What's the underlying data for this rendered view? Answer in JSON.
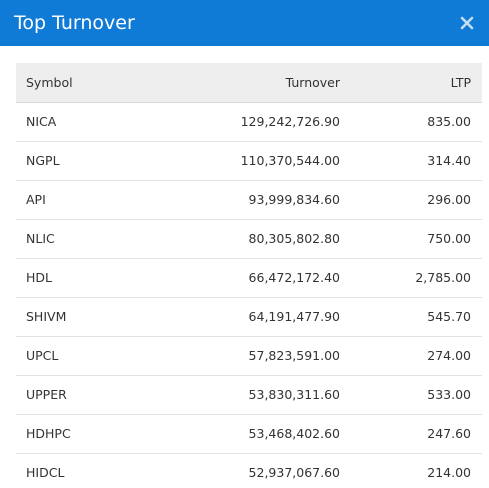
{
  "header": {
    "title": "Top Turnover",
    "close_icon": "close-icon"
  },
  "table": {
    "columns": [
      "Symbol",
      "Turnover",
      "LTP"
    ],
    "rows": [
      {
        "symbol": "NICA",
        "turnover": "129,242,726.90",
        "ltp": "835.00"
      },
      {
        "symbol": "NGPL",
        "turnover": "110,370,544.00",
        "ltp": "314.40"
      },
      {
        "symbol": "API",
        "turnover": "93,999,834.60",
        "ltp": "296.00"
      },
      {
        "symbol": "NLIC",
        "turnover": "80,305,802.80",
        "ltp": "750.00"
      },
      {
        "symbol": "HDL",
        "turnover": "66,472,172.40",
        "ltp": "2,785.00"
      },
      {
        "symbol": "SHIVM",
        "turnover": "64,191,477.90",
        "ltp": "545.70"
      },
      {
        "symbol": "UPCL",
        "turnover": "57,823,591.00",
        "ltp": "274.00"
      },
      {
        "symbol": "UPPER",
        "turnover": "53,830,311.60",
        "ltp": "533.00"
      },
      {
        "symbol": "HDHPC",
        "turnover": "53,468,402.60",
        "ltp": "247.60"
      },
      {
        "symbol": "HIDCL",
        "turnover": "52,937,067.60",
        "ltp": "214.00"
      }
    ]
  },
  "colors": {
    "header_bg": "#0f7bd6",
    "header_text": "#ffffff",
    "table_head_bg": "#eeeeee"
  }
}
